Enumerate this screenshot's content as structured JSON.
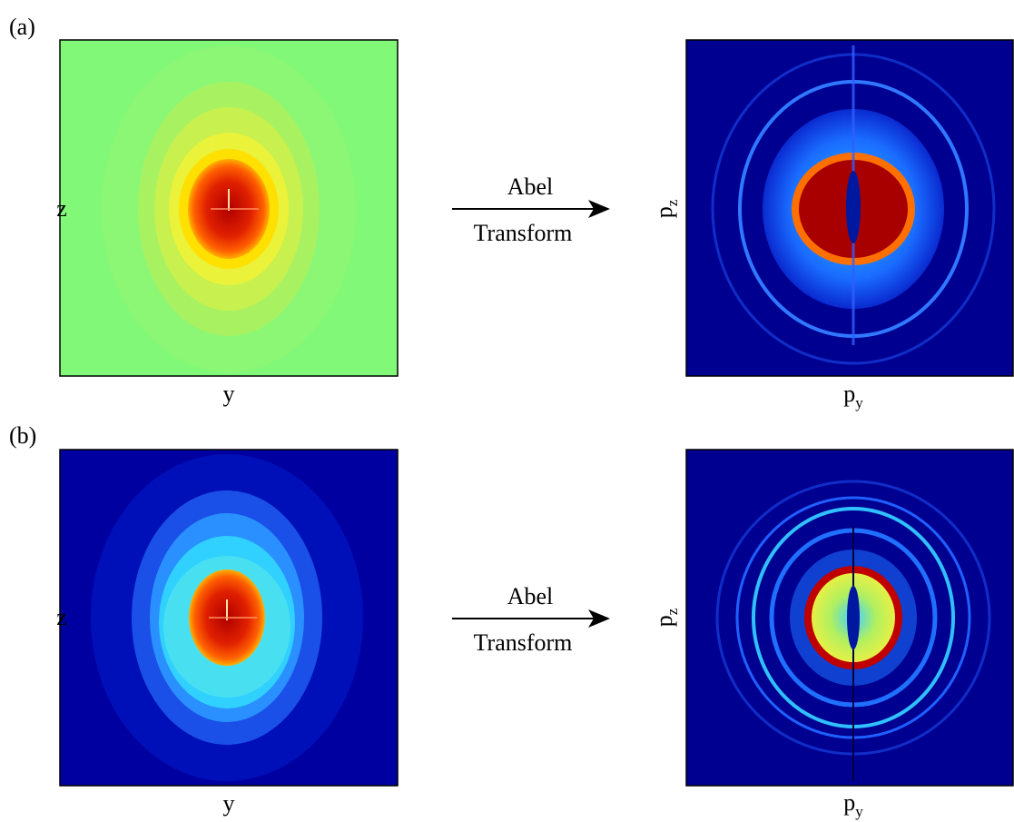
{
  "panels": [
    {
      "label": "(a)",
      "left_x_label": "y",
      "left_y_label": "z",
      "arrow_top": "Abel",
      "arrow_bottom": "Transform",
      "right_x_label": {
        "text": "p",
        "sub": "y"
      },
      "right_y_label": {
        "text": "p",
        "sub": "z"
      }
    },
    {
      "label": "(b)",
      "left_x_label": "y",
      "left_y_label": "z",
      "arrow_top": "Abel",
      "arrow_bottom": "Transform",
      "right_x_label": {
        "text": "p",
        "sub": "y"
      },
      "right_y_label": {
        "text": "p",
        "sub": "z"
      }
    }
  ]
}
